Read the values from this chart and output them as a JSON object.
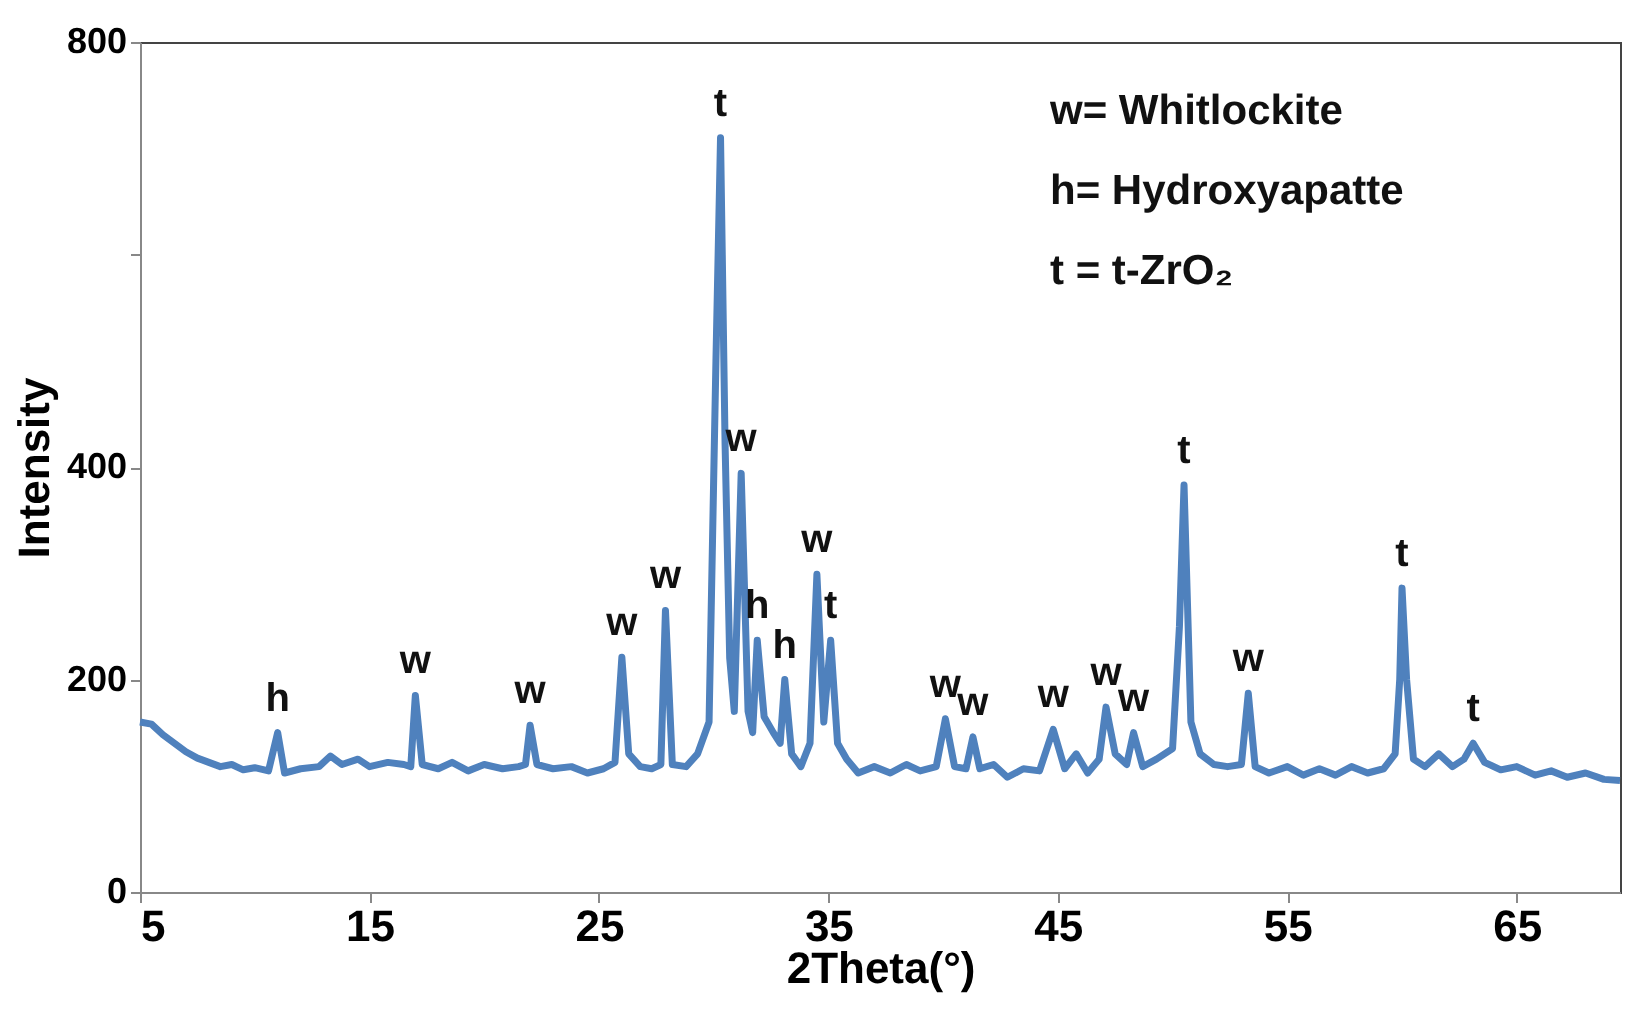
{
  "chart_data": {
    "type": "line",
    "xlabel": "2Theta(°)",
    "ylabel": "Intensity",
    "xlim": [
      5,
      69.5
    ],
    "xticks": [
      5,
      15,
      25,
      35,
      45,
      55,
      65
    ],
    "ylim": [
      0,
      800
    ],
    "yticks": [
      0,
      200,
      400,
      {
        "value": 600,
        "label": null
      },
      800
    ],
    "grid": false,
    "line_style": "solid",
    "series": [
      {
        "color": "#4f81bd",
        "x": [
          5,
          5.5,
          6,
          6.5,
          7,
          7.5,
          8,
          8.5,
          9,
          9.5,
          10,
          10.6,
          11,
          11.3,
          12,
          12.8,
          13.3,
          13.8,
          14.5,
          15,
          15.8,
          16.5,
          16.8,
          17,
          17.3,
          18,
          18.6,
          19.3,
          20,
          20.8,
          21.5,
          21.8,
          22,
          22.3,
          23,
          23.8,
          24.5,
          25.2,
          25.7,
          26,
          26.3,
          26.8,
          27.3,
          27.7,
          27.9,
          28.2,
          28.8,
          29.3,
          29.8,
          30.1,
          30.3,
          30.5,
          30.7,
          30.9,
          31.2,
          31.5,
          31.7,
          31.9,
          32.2,
          32.6,
          32.9,
          33.1,
          33.4,
          33.8,
          34.2,
          34.5,
          34.8,
          35.1,
          35.4,
          35.8,
          36.3,
          37,
          37.7,
          38.4,
          39,
          39.7,
          40.1,
          40.5,
          41,
          41.3,
          41.6,
          42.2,
          42.8,
          43.5,
          44.2,
          44.8,
          45.3,
          45.8,
          46.3,
          46.8,
          47.1,
          47.5,
          48,
          48.3,
          48.7,
          49.3,
          50,
          50.3,
          50.5,
          50.8,
          51.2,
          51.8,
          52.4,
          53,
          53.3,
          53.6,
          54.2,
          55,
          55.7,
          56.4,
          57.1,
          57.8,
          58.5,
          59.2,
          59.7,
          59.9,
          60,
          60.2,
          60.5,
          61,
          61.6,
          62.2,
          62.7,
          63.1,
          63.6,
          64.3,
          65,
          65.8,
          66.5,
          67.2,
          68,
          68.8,
          69.5
        ],
        "values": [
          160,
          158,
          148,
          140,
          132,
          126,
          122,
          118,
          120,
          115,
          117,
          114,
          150,
          112,
          116,
          118,
          128,
          120,
          125,
          118,
          122,
          120,
          118,
          185,
          120,
          116,
          122,
          114,
          120,
          116,
          118,
          120,
          157,
          120,
          116,
          118,
          112,
          116,
          122,
          221,
          130,
          118,
          116,
          120,
          265,
          120,
          118,
          130,
          160,
          500,
          710,
          420,
          220,
          170,
          394,
          170,
          150,
          237,
          165,
          150,
          140,
          200,
          130,
          118,
          140,
          299,
          160,
          237,
          140,
          125,
          112,
          118,
          112,
          120,
          114,
          118,
          163,
          118,
          116,
          146,
          116,
          120,
          108,
          116,
          114,
          153,
          116,
          130,
          112,
          125,
          174,
          130,
          120,
          150,
          118,
          125,
          135,
          250,
          383,
          160,
          130,
          120,
          118,
          120,
          187,
          118,
          112,
          118,
          110,
          116,
          110,
          118,
          112,
          116,
          130,
          200,
          286,
          200,
          125,
          118,
          130,
          118,
          125,
          140,
          122,
          115,
          118,
          110,
          114,
          108,
          112,
          106,
          105
        ]
      }
    ],
    "annotations": [
      {
        "text": "h",
        "x": 11,
        "y": 150
      },
      {
        "text": "w",
        "x": 17,
        "y": 185
      },
      {
        "text": "w",
        "x": 22,
        "y": 157
      },
      {
        "text": "w",
        "x": 26,
        "y": 221
      },
      {
        "text": "w",
        "x": 27.9,
        "y": 265
      },
      {
        "text": "t",
        "x": 30.3,
        "y": 710
      },
      {
        "text": "w",
        "x": 31.2,
        "y": 394
      },
      {
        "text": "h",
        "x": 31.9,
        "y": 237
      },
      {
        "text": "h",
        "x": 33.1,
        "y": 200
      },
      {
        "text": "w",
        "x": 34.5,
        "y": 299
      },
      {
        "text": "t",
        "x": 35.1,
        "y": 237
      },
      {
        "text": "w",
        "x": 40.1,
        "y": 163
      },
      {
        "text": "w",
        "x": 41.3,
        "y": 146
      },
      {
        "text": "w",
        "x": 44.8,
        "y": 153
      },
      {
        "text": "w",
        "x": 47.1,
        "y": 174
      },
      {
        "text": "w",
        "x": 48.3,
        "y": 150
      },
      {
        "text": "t",
        "x": 50.5,
        "y": 383
      },
      {
        "text": "w",
        "x": 53.3,
        "y": 187
      },
      {
        "text": "t",
        "x": 60,
        "y": 286
      },
      {
        "text": "t",
        "x": 63.1,
        "y": 140
      },
      "w= Whitlockite",
      "h= Hydroxyapatte",
      "t = t-ZrO₂"
    ]
  }
}
